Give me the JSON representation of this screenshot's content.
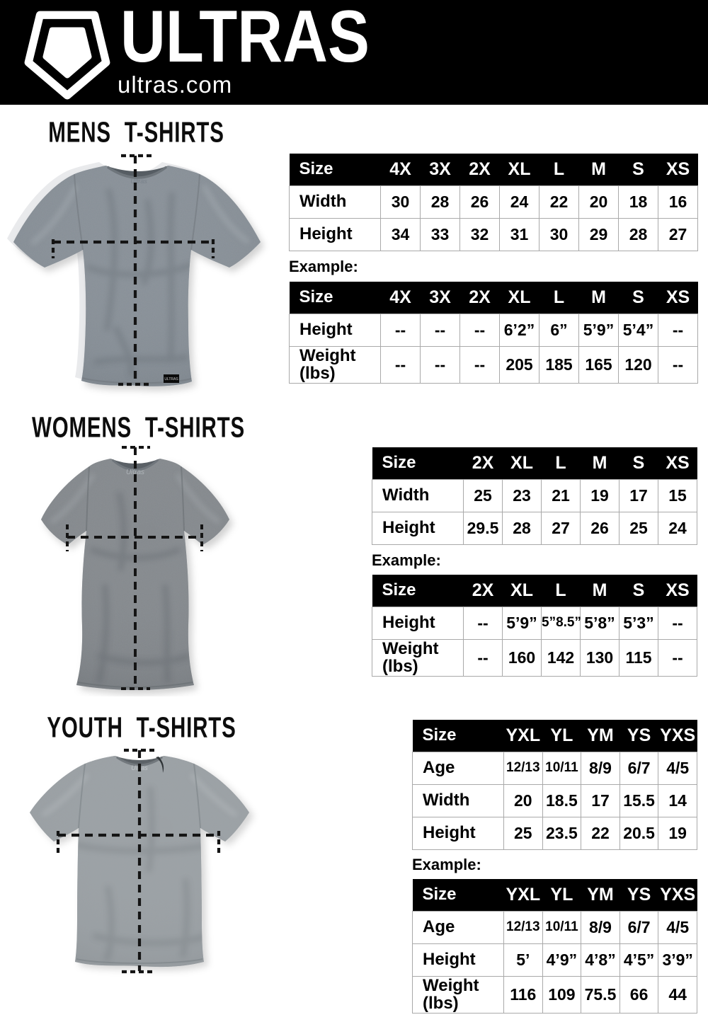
{
  "header": {
    "brand": "ULTRAS",
    "domain": "ultras.com",
    "logo_icon": "pentagon-shield-icon",
    "background": "#000000",
    "text_color": "#ffffff"
  },
  "colors": {
    "page_background": "#ffffff",
    "table_header_bg": "#000000",
    "table_header_text": "#ffffff",
    "table_border": "#a9a9a9",
    "measure_line": "#141414",
    "shirt_gray_mens": "#868e96",
    "shirt_gray_womens": "#84888c",
    "shirt_gray_youth": "#9ca1a5"
  },
  "sections": [
    {
      "id": "mens",
      "title": "MENS T-SHIRTS",
      "shirt_image": "mens-gray-tshirt-with-measurement-lines",
      "example_label": "Example:",
      "size_table": {
        "header": [
          "Size",
          "4X",
          "3X",
          "2X",
          "XL",
          "L",
          "M",
          "S",
          "XS"
        ],
        "rows": [
          {
            "label": "Width",
            "values": [
              "30",
              "28",
              "26",
              "24",
              "22",
              "20",
              "18",
              "16"
            ]
          },
          {
            "label": "Height",
            "values": [
              "34",
              "33",
              "32",
              "31",
              "30",
              "29",
              "28",
              "27"
            ]
          }
        ]
      },
      "example_table": {
        "header": [
          "Size",
          "4X",
          "3X",
          "2X",
          "XL",
          "L",
          "M",
          "S",
          "XS"
        ],
        "rows": [
          {
            "label": "Height",
            "values": [
              "--",
              "--",
              "--",
              "6’2”",
              "6”",
              "5’9”",
              "5’4”",
              "--"
            ]
          },
          {
            "label": "Weight",
            "label2": "(lbs)",
            "values": [
              "--",
              "--",
              "--",
              "205",
              "185",
              "165",
              "120",
              "--"
            ]
          }
        ]
      }
    },
    {
      "id": "womens",
      "title": "WOMENS T-SHIRTS",
      "shirt_image": "womens-gray-tshirt-with-measurement-lines",
      "example_label": "Example:",
      "size_table": {
        "header": [
          "Size",
          "2X",
          "XL",
          "L",
          "M",
          "S",
          "XS"
        ],
        "rows": [
          {
            "label": "Width",
            "values": [
              "25",
              "23",
              "21",
              "19",
              "17",
              "15"
            ]
          },
          {
            "label": "Height",
            "values": [
              "29.5",
              "28",
              "27",
              "26",
              "25",
              "24"
            ]
          }
        ]
      },
      "example_table": {
        "header": [
          "Size",
          "2X",
          "XL",
          "L",
          "M",
          "S",
          "XS"
        ],
        "rows": [
          {
            "label": "Height",
            "values": [
              "--",
              "5’9”",
              "5”8.5”",
              "5’8”",
              "5’3”",
              "--"
            ]
          },
          {
            "label": "Weight",
            "label2": "(lbs)",
            "values": [
              "--",
              "160",
              "142",
              "130",
              "115",
              "--"
            ]
          }
        ]
      }
    },
    {
      "id": "youth",
      "title": "YOUTH T-SHIRTS",
      "shirt_image": "youth-gray-tshirt-with-measurement-lines",
      "example_label": "Example:",
      "size_table": {
        "header": [
          "Size",
          "YXL",
          "YL",
          "YM",
          "YS",
          "YXS"
        ],
        "rows": [
          {
            "label": "Age",
            "values": [
              "12/13",
              "10/11",
              "8/9",
              "6/7",
              "4/5"
            ]
          },
          {
            "label": "Width",
            "values": [
              "20",
              "18.5",
              "17",
              "15.5",
              "14"
            ]
          },
          {
            "label": "Height",
            "values": [
              "25",
              "23.5",
              "22",
              "20.5",
              "19"
            ]
          }
        ]
      },
      "example_table": {
        "header": [
          "Size",
          "YXL",
          "YL",
          "YM",
          "YS",
          "YXS"
        ],
        "rows": [
          {
            "label": "Age",
            "values": [
              "12/13",
              "10/11",
              "8/9",
              "6/7",
              "4/5"
            ]
          },
          {
            "label": "Height",
            "values": [
              "5’",
              "4’9”",
              "4’8”",
              "4’5”",
              "3’9”"
            ]
          },
          {
            "label": "Weight",
            "label2": "(lbs)",
            "values": [
              "116",
              "109",
              "75.5",
              "66",
              "44"
            ]
          }
        ]
      }
    }
  ]
}
